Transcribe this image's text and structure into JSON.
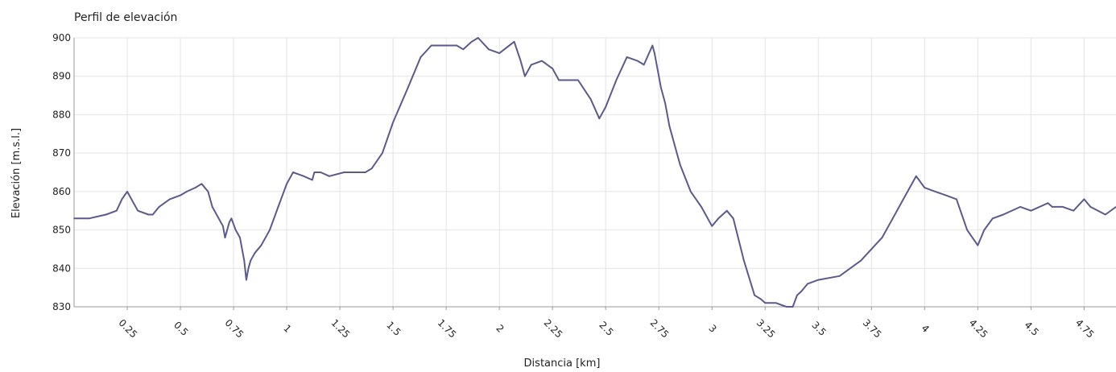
{
  "chart_data": {
    "type": "line",
    "title": "Perfil de elevación",
    "xlabel": "Distancia [km]",
    "ylabel": "Elevación [m.s.l.]",
    "xlim": [
      0,
      4.9
    ],
    "ylim": [
      830,
      900
    ],
    "x_ticks": [
      0.25,
      0.5,
      0.75,
      1,
      1.25,
      1.5,
      1.75,
      2,
      2.25,
      2.5,
      2.75,
      3,
      3.25,
      3.5,
      3.75,
      4,
      4.25,
      4.5,
      4.75
    ],
    "x_tick_labels": [
      "0.25",
      "0.5",
      "0.75",
      "1",
      "1.25",
      "1.5",
      "1.75",
      "2",
      "2.25",
      "2.5",
      "2.75",
      "3",
      "3.25",
      "3.5",
      "3.75",
      "4",
      "4.25",
      "4.5",
      "4.75"
    ],
    "y_ticks": [
      830,
      840,
      850,
      860,
      870,
      880,
      890,
      900
    ],
    "y_tick_labels": [
      "830",
      "840",
      "850",
      "860",
      "870",
      "880",
      "890",
      "900"
    ],
    "grid": true,
    "line_color": "#5a5a8c",
    "grid_color": "#e4e4e4",
    "axis_color": "#999999",
    "series": [
      {
        "x": [
          0,
          0.07,
          0.15,
          0.2,
          0.225,
          0.25,
          0.28,
          0.3,
          0.35,
          0.37,
          0.4,
          0.45,
          0.5,
          0.53,
          0.57,
          0.6,
          0.63,
          0.65,
          0.7,
          0.71,
          0.73,
          0.74,
          0.76,
          0.78,
          0.8,
          0.81,
          0.82,
          0.83,
          0.85,
          0.88,
          0.92,
          0.96,
          1.0,
          1.03,
          1.08,
          1.12,
          1.13,
          1.16,
          1.2,
          1.27,
          1.37,
          1.4,
          1.45,
          1.5,
          1.57,
          1.63,
          1.68,
          1.8,
          1.83,
          1.87,
          1.9,
          1.95,
          2.0,
          2.07,
          2.1,
          2.12,
          2.15,
          2.2,
          2.25,
          2.28,
          2.33,
          2.37,
          2.43,
          2.47,
          2.5,
          2.55,
          2.6,
          2.65,
          2.68,
          2.72,
          2.73,
          2.76,
          2.78,
          2.8,
          2.85,
          2.9,
          2.95,
          2.98,
          3.0,
          3.03,
          3.07,
          3.1,
          3.15,
          3.2,
          3.23,
          3.25,
          3.3,
          3.35,
          3.38,
          3.4,
          3.42,
          3.45,
          3.5,
          3.6,
          3.7,
          3.8,
          3.85,
          3.9,
          3.93,
          3.96,
          4.0,
          4.05,
          4.1,
          4.15,
          4.2,
          4.25,
          4.28,
          4.32,
          4.37,
          4.45,
          4.5,
          4.58,
          4.6,
          4.65,
          4.7,
          4.75,
          4.78,
          4.85,
          4.9
        ],
        "y": [
          853,
          853,
          854,
          855,
          858,
          860,
          857,
          855,
          854,
          854,
          856,
          858,
          859,
          860,
          861,
          862,
          860,
          856,
          851,
          848,
          852,
          853,
          850,
          848,
          842,
          837,
          840,
          842,
          844,
          846,
          850,
          856,
          862,
          865,
          864,
          863,
          865,
          865,
          864,
          865,
          865,
          866,
          870,
          878,
          887,
          895,
          898,
          898,
          897,
          899,
          900,
          897,
          896,
          899,
          894,
          890,
          893,
          894,
          892,
          889,
          889,
          889,
          884,
          879,
          882,
          889,
          895,
          894,
          893,
          898,
          896,
          887,
          883,
          877,
          867,
          860,
          856,
          853,
          851,
          853,
          855,
          853,
          842,
          833,
          832,
          831,
          831,
          830,
          830,
          833,
          834,
          836,
          837,
          838,
          842,
          848,
          853,
          858,
          861,
          864,
          861,
          860,
          859,
          858,
          850,
          846,
          850,
          853,
          854,
          856,
          855,
          857,
          856,
          856,
          855,
          858,
          856,
          854,
          856
        ]
      }
    ]
  }
}
